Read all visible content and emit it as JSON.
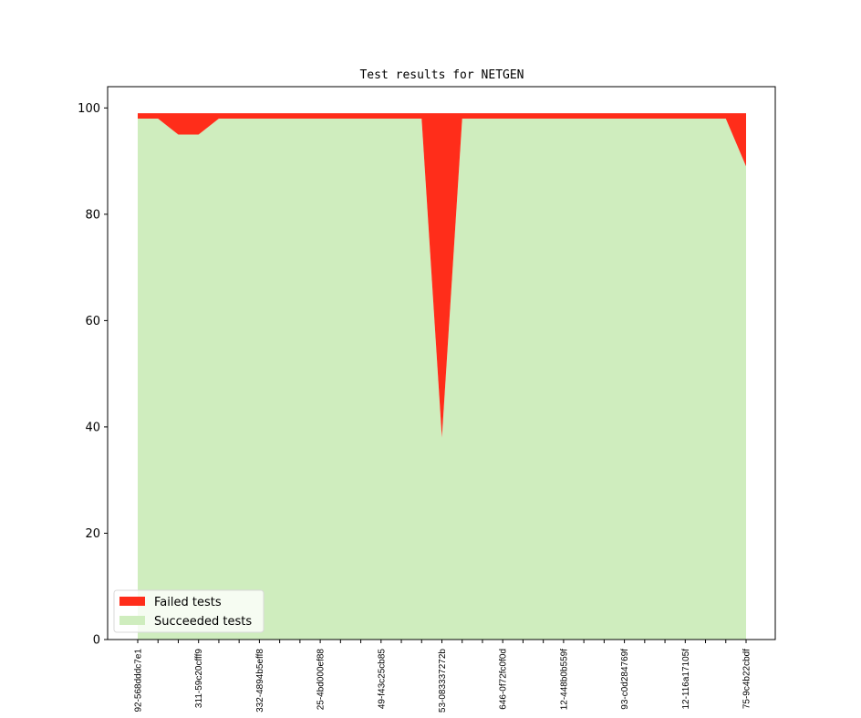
{
  "chart_data": {
    "type": "area",
    "title": "Test results for NETGEN",
    "xlabel": "",
    "ylabel": "",
    "ylim": [
      0,
      104
    ],
    "yticks": [
      0,
      20,
      40,
      60,
      80,
      100
    ],
    "x_count": 31,
    "x_tick_labels": [
      "92-568dddc7e1",
      "311-59c20cfff9",
      "332-4894b5eff8",
      "25-4bd000ef88",
      "49-f43c25cb85",
      "53-083337272b",
      "646-0f72fc0f0d",
      "12-448b0b559f",
      "93-c0d284769f",
      "12-116a17105f",
      "75-9c4b22cbdf"
    ],
    "x_tick_label_indices": [
      0,
      3,
      6,
      9,
      12,
      15,
      18,
      21,
      24,
      27,
      30
    ],
    "series": [
      {
        "name": "Succeeded tests",
        "color": "#cfedbe",
        "values": [
          98,
          98,
          95,
          95,
          98,
          98,
          98,
          98,
          98,
          98,
          98,
          98,
          98,
          98,
          98,
          38,
          98,
          98,
          98,
          98,
          98,
          98,
          98,
          98,
          98,
          98,
          98,
          98,
          98,
          98,
          89
        ]
      },
      {
        "name": "Failed tests",
        "color": "#ff2d1a",
        "values": [
          1,
          1,
          4,
          4,
          1,
          1,
          1,
          1,
          1,
          1,
          1,
          1,
          1,
          1,
          1,
          61,
          1,
          1,
          1,
          1,
          1,
          1,
          1,
          1,
          1,
          1,
          1,
          1,
          1,
          1,
          10
        ]
      }
    ],
    "legend": {
      "position": "lower-left",
      "order": [
        "Failed tests",
        "Succeeded tests"
      ]
    },
    "grid": false
  }
}
